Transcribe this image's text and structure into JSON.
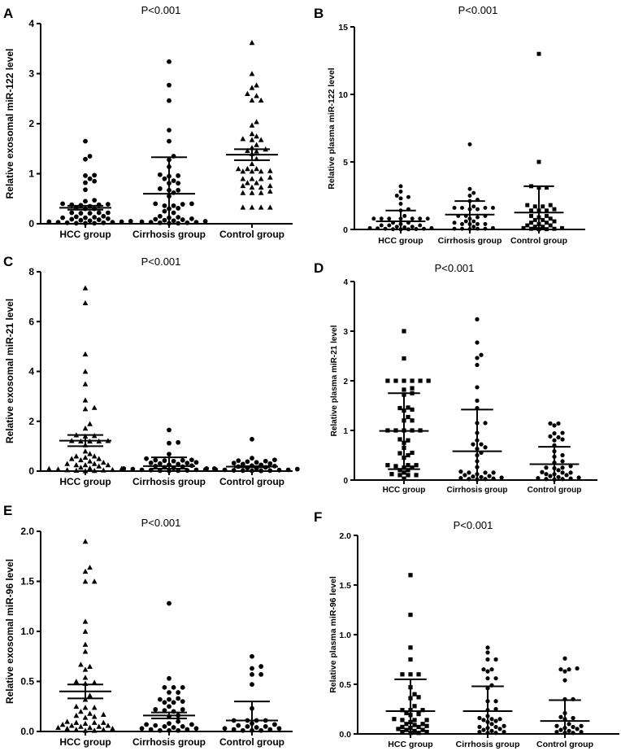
{
  "chart_data": [
    {
      "panel": "A",
      "type": "scatter",
      "title": "P<0.001",
      "ylabel": "Relative exosomal miR-122 level",
      "xlabel": "",
      "categories": [
        "HCC group",
        "Cirrhosis group",
        "Control group"
      ],
      "ylim": [
        0,
        4
      ],
      "yticks": [
        "0",
        "1",
        "2",
        "3",
        "4"
      ],
      "grid": false,
      "color": "#000000",
      "series": [
        {
          "marker": "circle",
          "mean": 0.32,
          "err": [
            0.28,
            0.36
          ],
          "values": [
            1.65,
            1.35,
            1.29,
            0.97,
            0.96,
            0.9,
            0.85,
            0.82,
            0.68,
            0.47,
            0.45,
            0.4,
            0.39,
            0.38,
            0.38,
            0.37,
            0.35,
            0.32,
            0.3,
            0.3,
            0.22,
            0.22,
            0.22,
            0.21,
            0.21,
            0.15,
            0.14,
            0.13,
            0.12,
            0.12,
            0.1,
            0.09,
            0.08,
            0.07,
            0.06,
            0.05,
            0.04,
            0.04,
            0.03,
            0.03,
            0.02,
            0.02,
            0.01,
            0.01,
            0.01
          ]
        },
        {
          "marker": "circle",
          "mean": 0.6,
          "err": [
            0,
            1.33
          ],
          "values": [
            3.24,
            2.77,
            2.46,
            1.87,
            1.65,
            1.35,
            1.28,
            1.14,
            0.98,
            0.96,
            0.95,
            0.9,
            0.86,
            0.81,
            0.81,
            0.7,
            0.67,
            0.67,
            0.62,
            0.55,
            0.4,
            0.4,
            0.39,
            0.36,
            0.36,
            0.31,
            0.3,
            0.25,
            0.22,
            0.15,
            0.13,
            0.12,
            0.1,
            0.09,
            0.08,
            0.07,
            0.06,
            0.05,
            0.04,
            0.03,
            0.03,
            0.02,
            0.02,
            0.01,
            0.01
          ]
        },
        {
          "marker": "triangle",
          "mean": 1.38,
          "err": [
            1.27,
            1.49
          ],
          "values": [
            3.62,
            3.0,
            2.77,
            2.72,
            2.6,
            2.56,
            2.47,
            2.47,
            2.04,
            1.97,
            1.8,
            1.75,
            1.68,
            1.68,
            1.7,
            1.58,
            1.52,
            1.49,
            1.46,
            1.45,
            1.4,
            1.3,
            1.2,
            1.1,
            1.1,
            1.1,
            1.06,
            1.05,
            1.05,
            1.05,
            0.93,
            0.9,
            0.9,
            0.9,
            0.82,
            0.82,
            0.76,
            0.76,
            0.73,
            0.73,
            0.65,
            0.62,
            0.62,
            0.62,
            0.33,
            0.33,
            0.33,
            0.33
          ]
        }
      ]
    },
    {
      "panel": "B",
      "type": "scatter",
      "title": "P<0.001",
      "ylabel": "Relative plasma miR-122 level",
      "xlabel": "",
      "categories": [
        "HCC group",
        "Cirrhosis group",
        "Control group"
      ],
      "ylim": [
        0,
        15
      ],
      "yticks": [
        "0",
        "5",
        "10",
        "15"
      ],
      "grid": false,
      "color": "#000000",
      "series": [
        {
          "marker": "circle",
          "mean": 0.6,
          "err": [
            0,
            1.4
          ],
          "values": [
            3.2,
            2.8,
            2.5,
            2.4,
            2.3,
            1.9,
            1.5,
            1.4,
            1.0,
            0.8,
            0.8,
            0.8,
            0.8,
            0.8,
            0.8,
            0.8,
            0.5,
            0.5,
            0.4,
            0.3,
            0.3,
            0.3,
            0.2,
            0.2,
            0.15,
            0.1,
            0.1,
            0.08,
            0.05,
            0.05,
            0.03,
            0.02,
            0.01,
            0.01
          ]
        },
        {
          "marker": "circle",
          "mean": 1.1,
          "err": [
            0,
            2.1
          ],
          "values": [
            6.3,
            3.0,
            2.7,
            2.5,
            2.2,
            2.1,
            1.7,
            1.6,
            1.6,
            1.6,
            1.6,
            1.5,
            1.5,
            1.0,
            1.0,
            1.0,
            0.9,
            0.8,
            0.6,
            0.6,
            0.5,
            0.4,
            0.4,
            0.4,
            0.4,
            0.2,
            0.1,
            0.05,
            0.05,
            0.05,
            0.05,
            0.03
          ]
        },
        {
          "marker": "square",
          "mean": 1.25,
          "err": [
            0,
            3.2
          ],
          "values": [
            13.0,
            5.0,
            3.2,
            3.1,
            3.1,
            1.8,
            1.8,
            1.7,
            1.7,
            1.5,
            1.4,
            1.4,
            1.4,
            1.0,
            1.0,
            0.9,
            0.8,
            0.7,
            0.7,
            0.6,
            0.5,
            0.5,
            0.4,
            0.3,
            0.3,
            0.2,
            0.2,
            0.1,
            0.1,
            0.05,
            0.05,
            0.02,
            0.02
          ]
        }
      ]
    },
    {
      "panel": "C",
      "type": "scatter",
      "title": "P<0.001",
      "ylabel": "Relative exosomal miR-21 level",
      "xlabel": "",
      "categories": [
        "HCC group",
        "Cirrhosis group",
        "Control group"
      ],
      "ylim": [
        0,
        8
      ],
      "yticks": [
        "0",
        "2",
        "4",
        "6",
        "8"
      ],
      "grid": false,
      "color": "#000000",
      "series": [
        {
          "marker": "triangle",
          "mean": 1.22,
          "err": [
            1.0,
            1.45
          ],
          "values": [
            7.35,
            6.75,
            4.7,
            4.0,
            3.5,
            2.85,
            2.55,
            2.5,
            1.9,
            1.72,
            1.45,
            1.42,
            1.4,
            1.22,
            1.22,
            1.2,
            1.2,
            1.2,
            1.05,
            0.8,
            0.7,
            0.6,
            0.6,
            0.55,
            0.5,
            0.5,
            0.45,
            0.4,
            0.35,
            0.3,
            0.3,
            0.25,
            0.25,
            0.25,
            0.2,
            0.15,
            0.12,
            0.1,
            0.1,
            0.08,
            0.06,
            0.05,
            0.04,
            0.03,
            0.02,
            0.01
          ]
        },
        {
          "marker": "circle",
          "mean": 0.2,
          "err": [
            0.1,
            0.55
          ],
          "values": [
            1.65,
            1.15,
            1.12,
            0.68,
            0.5,
            0.45,
            0.44,
            0.43,
            0.42,
            0.4,
            0.35,
            0.33,
            0.32,
            0.3,
            0.28,
            0.25,
            0.22,
            0.2,
            0.18,
            0.15,
            0.12,
            0.1,
            0.1,
            0.08,
            0.06,
            0.05,
            0.05,
            0.04,
            0.03,
            0.02,
            0.02,
            0.01
          ]
        },
        {
          "marker": "circle",
          "mean": 0.18,
          "err": [
            0.15,
            0.2
          ],
          "values": [
            1.28,
            0.52,
            0.45,
            0.42,
            0.4,
            0.38,
            0.35,
            0.32,
            0.3,
            0.28,
            0.25,
            0.22,
            0.2,
            0.18,
            0.15,
            0.12,
            0.1,
            0.1,
            0.08,
            0.06,
            0.05,
            0.05,
            0.04,
            0.03,
            0.02,
            0.02,
            0.01,
            0.01
          ]
        }
      ]
    },
    {
      "panel": "D",
      "type": "scatter",
      "title": "P<0.001",
      "ylabel": "Relative plasma miR-21 level",
      "xlabel": "",
      "categories": [
        "HCC group",
        "Cirrhosis group",
        "Control group"
      ],
      "ylim": [
        0,
        4
      ],
      "yticks": [
        "0",
        "1",
        "2",
        "3",
        "4"
      ],
      "grid": false,
      "color": "#000000",
      "series": [
        {
          "marker": "square",
          "mean": 0.99,
          "err": [
            0.22,
            1.75
          ],
          "values": [
            3.0,
            2.45,
            2.0,
            2.0,
            2.0,
            2.0,
            2.0,
            2.0,
            1.85,
            1.82,
            1.75,
            1.72,
            1.46,
            1.45,
            1.42,
            1.4,
            1.27,
            1.2,
            1.2,
            1.0,
            1.0,
            1.0,
            1.0,
            1.0,
            0.82,
            0.8,
            0.75,
            0.65,
            0.55,
            0.54,
            0.5,
            0.45,
            0.3,
            0.3,
            0.3,
            0.28,
            0.25,
            0.25,
            0.2,
            0.2,
            0.15,
            0.12,
            0.1,
            0.1,
            0.1,
            0.03
          ]
        },
        {
          "marker": "circle",
          "mean": 0.58,
          "err": [
            0,
            1.42
          ],
          "values": [
            3.24,
            2.77,
            2.52,
            2.46,
            2.32,
            1.87,
            1.6,
            1.45,
            1.15,
            1.15,
            0.95,
            0.8,
            0.72,
            0.72,
            0.66,
            0.63,
            0.55,
            0.5,
            0.38,
            0.26,
            0.17,
            0.15,
            0.15,
            0.15,
            0.12,
            0.1,
            0.08,
            0.07,
            0.06,
            0.05,
            0.04,
            0.03,
            0.02,
            0.02,
            0.01
          ]
        },
        {
          "marker": "circle",
          "mean": 0.32,
          "err": [
            0,
            0.67
          ],
          "values": [
            1.14,
            1.14,
            1.1,
            0.95,
            0.94,
            0.88,
            0.86,
            0.82,
            0.8,
            0.7,
            0.58,
            0.5,
            0.47,
            0.38,
            0.35,
            0.28,
            0.25,
            0.25,
            0.24,
            0.2,
            0.16,
            0.15,
            0.15,
            0.12,
            0.12,
            0.1,
            0.08,
            0.06,
            0.05,
            0.04,
            0.03,
            0.02,
            0.02,
            0.01
          ]
        }
      ]
    },
    {
      "panel": "E",
      "type": "scatter",
      "title": "P<0.001",
      "ylabel": "Relative exosomal miR-96 level",
      "xlabel": "",
      "categories": [
        "HCC group",
        "Cirrhosis group",
        "Control group"
      ],
      "ylim": [
        0,
        2
      ],
      "yticks": [
        "0.0",
        "0.5",
        "1.0",
        "1.5",
        "2.0"
      ],
      "grid": false,
      "color": "#000000",
      "series": [
        {
          "marker": "triangle",
          "mean": 0.4,
          "err": [
            0.33,
            0.47
          ],
          "values": [
            1.9,
            1.64,
            1.6,
            1.5,
            1.5,
            1.1,
            1.0,
            0.87,
            0.8,
            0.67,
            0.65,
            0.62,
            0.54,
            0.5,
            0.49,
            0.48,
            0.36,
            0.32,
            0.25,
            0.24,
            0.24,
            0.2,
            0.18,
            0.17,
            0.16,
            0.15,
            0.14,
            0.1,
            0.09,
            0.09,
            0.09,
            0.08,
            0.07,
            0.06,
            0.06,
            0.05,
            0.05,
            0.04,
            0.04,
            0.03,
            0.03,
            0.02,
            0.02,
            0.01,
            0.01
          ]
        },
        {
          "marker": "circle",
          "mean": 0.16,
          "err": [
            0.13,
            0.19
          ],
          "values": [
            1.28,
            0.53,
            0.44,
            0.44,
            0.44,
            0.39,
            0.39,
            0.33,
            0.32,
            0.32,
            0.3,
            0.29,
            0.29,
            0.25,
            0.22,
            0.22,
            0.21,
            0.2,
            0.16,
            0.15,
            0.1,
            0.08,
            0.07,
            0.07,
            0.06,
            0.05,
            0.05,
            0.04,
            0.03,
            0.03,
            0.02,
            0.02,
            0.01,
            0.01,
            0.01
          ]
        },
        {
          "marker": "circle",
          "mean": 0.11,
          "err": [
            0,
            0.3
          ],
          "values": [
            0.75,
            0.65,
            0.63,
            0.57,
            0.57,
            0.47,
            0.23,
            0.11,
            0.11,
            0.11,
            0.11,
            0.08,
            0.07,
            0.06,
            0.05,
            0.05,
            0.04,
            0.03,
            0.03,
            0.02,
            0.02,
            0.01,
            0.01,
            0.01
          ]
        }
      ]
    },
    {
      "panel": "F",
      "type": "scatter",
      "title": "P<0.001",
      "ylabel": "Relative plasma miR-96 level",
      "xlabel": "",
      "categories": [
        "HCC group",
        "Cirrhosis group",
        "Control group"
      ],
      "ylim": [
        0,
        2
      ],
      "yticks": [
        "0.0",
        "0.5",
        "1.0",
        "1.5",
        "2.0"
      ],
      "grid": false,
      "color": "#000000",
      "series": [
        {
          "marker": "square",
          "mean": 0.23,
          "err": [
            0,
            0.55
          ],
          "values": [
            1.6,
            1.2,
            0.87,
            0.75,
            0.6,
            0.6,
            0.6,
            0.47,
            0.4,
            0.37,
            0.36,
            0.28,
            0.24,
            0.24,
            0.24,
            0.21,
            0.2,
            0.19,
            0.15,
            0.14,
            0.14,
            0.14,
            0.12,
            0.1,
            0.1,
            0.09,
            0.08,
            0.07,
            0.07,
            0.06,
            0.05,
            0.04,
            0.04,
            0.03,
            0.02,
            0.02,
            0.01,
            0.01
          ]
        },
        {
          "marker": "circle",
          "mean": 0.23,
          "err": [
            0,
            0.48
          ],
          "values": [
            0.87,
            0.82,
            0.75,
            0.75,
            0.65,
            0.65,
            0.63,
            0.56,
            0.56,
            0.49,
            0.46,
            0.33,
            0.33,
            0.25,
            0.24,
            0.18,
            0.16,
            0.15,
            0.15,
            0.14,
            0.13,
            0.12,
            0.1,
            0.08,
            0.07,
            0.07,
            0.06,
            0.05,
            0.04,
            0.03,
            0.02,
            0.02,
            0.01,
            0.01
          ]
        },
        {
          "marker": "circle",
          "mean": 0.13,
          "err": [
            0,
            0.34
          ],
          "values": [
            0.76,
            0.66,
            0.65,
            0.65,
            0.63,
            0.54,
            0.35,
            0.35,
            0.21,
            0.17,
            0.16,
            0.15,
            0.1,
            0.08,
            0.08,
            0.07,
            0.06,
            0.05,
            0.04,
            0.03,
            0.02,
            0.02,
            0.01,
            0.01
          ]
        }
      ]
    }
  ]
}
